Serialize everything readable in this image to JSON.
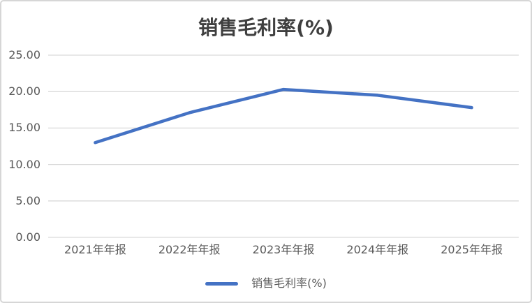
{
  "chart_data": {
    "type": "line",
    "title": "销售毛利率(%)",
    "categories": [
      "2021年年报",
      "2022年年报",
      "2023年年报",
      "2024年年报",
      "2025年年报"
    ],
    "series": [
      {
        "name": "销售毛利率(%)",
        "values": [
          13.0,
          17.1,
          20.3,
          19.5,
          17.8
        ]
      }
    ],
    "y_ticks": [
      0,
      5,
      10,
      15,
      20,
      25
    ],
    "y_tick_labels": [
      "0.00",
      "5.00",
      "10.00",
      "15.00",
      "20.00",
      "25.00"
    ],
    "ylim": [
      0,
      25
    ],
    "grid": "horizontal",
    "legend": {
      "position": "bottom",
      "entries": [
        "销售毛利率(%)"
      ]
    },
    "colors": {
      "line": "#4472C4",
      "gridline": "#D9D9D9",
      "title_text": "#3F3F3F",
      "axis_text": "#595959",
      "border": "#D6D6D6",
      "background": "#FFFFFF"
    }
  }
}
